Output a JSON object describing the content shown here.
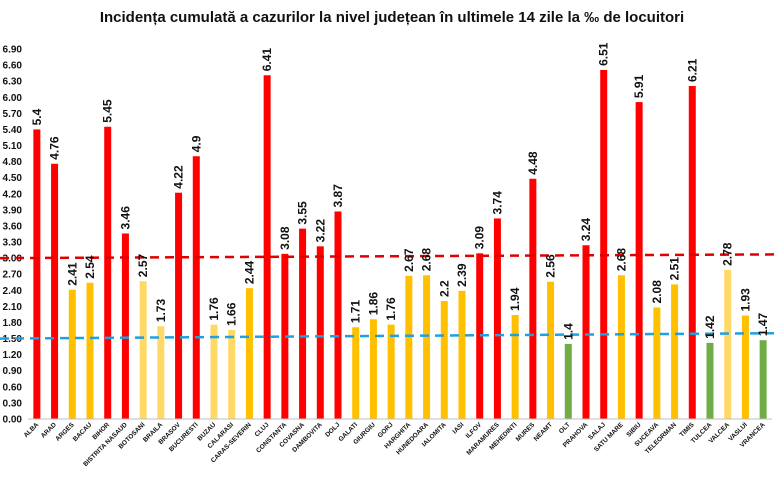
{
  "chart_data": {
    "type": "bar",
    "title": "Incidența cumulată a cazurilor la nivel județean în ultimele 14 zile la ‰ de locuitori",
    "xlabel": "",
    "ylabel": "",
    "ylim": [
      0,
      6.9
    ],
    "yticks": [
      "0.00",
      "0.30",
      "0.60",
      "0.90",
      "1.20",
      "1.50",
      "1.80",
      "2.10",
      "2.40",
      "2.70",
      "3.00",
      "3.30",
      "3.60",
      "3.90",
      "4.20",
      "4.50",
      "4.80",
      "5.10",
      "5.40",
      "5.70",
      "6.00",
      "6.30",
      "6.60",
      "6.90"
    ],
    "categories": [
      "ALBA",
      "ARAD",
      "ARGES",
      "BACAU",
      "BIHOR",
      "BISTRITA NASAUD",
      "BOTOSANI",
      "BRAILA",
      "BRASOV",
      "BUCURESTI",
      "BUZAU",
      "CALARASI",
      "CARAS-SEVERIN",
      "CLUJ",
      "CONSTANTA",
      "COVASNA",
      "DAMBOVITA",
      "DOLJ",
      "GALATI",
      "GIURGIU",
      "GORJ",
      "HARGHITA",
      "HUNEDOARA",
      "IALOMITA",
      "IASI",
      "ILFOV",
      "MARAMURES",
      "MEHEDINTI",
      "MURES",
      "NEAMT",
      "OLT",
      "PRAHOVA",
      "SALAJ",
      "SATU MARE",
      "SIBIU",
      "SUCEAVA",
      "TELEORMAN",
      "TIMIS",
      "TULCEA",
      "VALCEA",
      "VASLUI",
      "VRANCEA"
    ],
    "values": [
      5.4,
      4.76,
      2.41,
      2.54,
      5.45,
      3.46,
      2.57,
      1.73,
      4.22,
      4.9,
      1.76,
      1.66,
      2.44,
      6.41,
      3.08,
      3.55,
      3.22,
      3.87,
      1.71,
      1.86,
      1.76,
      2.67,
      2.68,
      2.2,
      2.39,
      3.09,
      3.74,
      1.94,
      4.48,
      2.56,
      1.4,
      3.24,
      6.51,
      2.68,
      5.91,
      2.08,
      2.51,
      6.21,
      1.42,
      2.78,
      1.93,
      1.47
    ],
    "data_labels": [
      "5.4",
      "4.76",
      "2.41",
      "2.54",
      "5.45",
      "3.46",
      "2.57",
      "1.73",
      "4.22",
      "4.9",
      "1.76",
      "1.66",
      "2.44",
      "6.41",
      "3.08",
      "3.55",
      "3.22",
      "3.87",
      "1.71",
      "1.86",
      "1.76",
      "2.67",
      "2.68",
      "2.2",
      "2.39",
      "3.09",
      "3.74",
      "1.94",
      "4.48",
      "2.56",
      "1.4",
      "3.24",
      "6.51",
      "2.68",
      "5.91",
      "2.08",
      "2.51",
      "6.21",
      "1.42",
      "2.78",
      "1.93",
      "1.47"
    ],
    "bar_colors": [
      "#ff0000",
      "#ff0000",
      "#ffc000",
      "#ffc000",
      "#ff0000",
      "#ff0000",
      "#ffd966",
      "#ffd966",
      "#ff0000",
      "#ff0000",
      "#ffd966",
      "#ffd966",
      "#ffc000",
      "#ff0000",
      "#ff0000",
      "#ff0000",
      "#ff0000",
      "#ff0000",
      "#ffc000",
      "#ffc000",
      "#ffc000",
      "#ffc000",
      "#ffc000",
      "#ffc000",
      "#ffc000",
      "#ff0000",
      "#ff0000",
      "#ffc000",
      "#ff0000",
      "#ffc000",
      "#70ad47",
      "#ff0000",
      "#ff0000",
      "#ffc000",
      "#ff0000",
      "#ffc000",
      "#ffc000",
      "#ff0000",
      "#70ad47",
      "#ffd966",
      "#ffc000",
      "#70ad47"
    ],
    "reference_lines": [
      {
        "y_start": 3.0,
        "y_end": 3.07,
        "color": "#e00000",
        "style": "dashed"
      },
      {
        "y_start": 1.5,
        "y_end": 1.6,
        "color": "#1fa0e0",
        "style": "dashed"
      }
    ],
    "grid": false,
    "legend": "none"
  }
}
